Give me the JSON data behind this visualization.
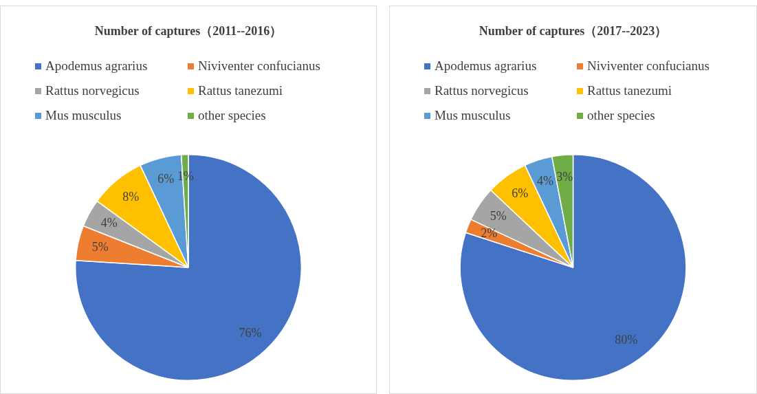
{
  "chart_data": [
    {
      "type": "pie",
      "title": "Number of captures（2011--2016）",
      "categories": [
        "Apodemus agrarius",
        "Niviventer confucianus",
        "Rattus norvegicus",
        "Rattus tanezumi",
        "Mus musculus",
        "other species"
      ],
      "values": [
        76,
        5,
        4,
        8,
        6,
        1
      ],
      "colors": [
        "#4472c4",
        "#ed7d31",
        "#a5a5a5",
        "#ffc000",
        "#5b9bd5",
        "#70ad47"
      ],
      "value_labels": [
        "76%",
        "5%",
        "4%",
        "8%",
        "6%",
        "1%"
      ],
      "legend": "top"
    },
    {
      "type": "pie",
      "title": "Number of captures（2017--2023）",
      "categories": [
        "Apodemus agrarius",
        "Niviventer confucianus",
        "Rattus norvegicus",
        "Rattus tanezumi",
        "Mus musculus",
        "other species"
      ],
      "values": [
        80,
        2,
        5,
        6,
        4,
        3
      ],
      "colors": [
        "#4472c4",
        "#ed7d31",
        "#a5a5a5",
        "#ffc000",
        "#5b9bd5",
        "#70ad47"
      ],
      "value_labels": [
        "80%",
        "2%",
        "5%",
        "6%",
        "4%",
        "3%"
      ],
      "legend": "top"
    }
  ]
}
